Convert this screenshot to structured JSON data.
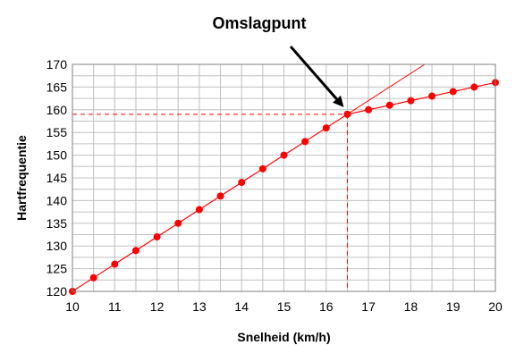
{
  "chart_data": {
    "type": "scatter",
    "xlabel": "Snelheid (km/h)",
    "ylabel": "Hartfrequentie",
    "xlim": [
      10,
      20
    ],
    "ylim": [
      120,
      170
    ],
    "xticks": [
      10,
      11,
      12,
      13,
      14,
      15,
      16,
      17,
      18,
      19,
      20
    ],
    "yticks": [
      120,
      125,
      130,
      135,
      140,
      145,
      150,
      155,
      160,
      165,
      170
    ],
    "grid": true,
    "series": [
      {
        "color": "#ff0000",
        "points": [
          [
            10,
            120
          ],
          [
            10.5,
            123
          ],
          [
            11,
            126
          ],
          [
            11.5,
            129
          ],
          [
            12,
            132
          ],
          [
            12.5,
            135
          ],
          [
            13,
            138
          ],
          [
            13.5,
            141
          ],
          [
            14,
            144
          ],
          [
            14.5,
            147
          ],
          [
            15,
            150
          ],
          [
            15.5,
            153
          ],
          [
            16,
            156
          ],
          [
            16.5,
            159
          ],
          [
            17,
            160
          ],
          [
            17.5,
            161
          ],
          [
            18,
            162
          ],
          [
            18.5,
            163
          ],
          [
            19,
            164
          ],
          [
            19.5,
            165
          ],
          [
            20,
            166
          ]
        ]
      }
    ],
    "trend_lines": [
      {
        "from": [
          10,
          120
        ],
        "to": [
          18.33,
          170
        ]
      },
      {
        "from": [
          16.5,
          159
        ],
        "to": [
          20,
          166
        ]
      }
    ],
    "reference_point": {
      "x": 16.5,
      "y": 159
    },
    "annotation": {
      "text": "Omslagpunt",
      "target": [
        16.5,
        159
      ]
    }
  }
}
